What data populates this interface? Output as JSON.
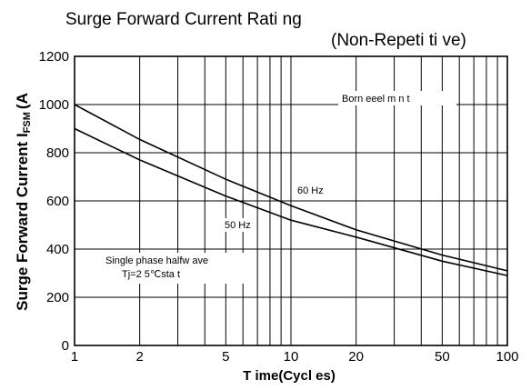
{
  "chart_data": {
    "type": "line",
    "title": "Surge Forward Current Rati ng",
    "subtitle": "(Non-Repeti ti ve)",
    "ylabel": "Surge Forward Current IFSM (A)",
    "ylabel_main": "Surge Forward Current I",
    "ylabel_sub": "FSM",
    "ylabel_unit": "(A",
    "xlabel": "T ime(Cycl es)",
    "x_scale": "log",
    "xlim": [
      1,
      100
    ],
    "ylim": [
      0,
      1200
    ],
    "grid": true,
    "x_ticks": [
      {
        "value": 1,
        "label": "1"
      },
      {
        "value": 2,
        "label": "2"
      },
      {
        "value": 5,
        "label": "5"
      },
      {
        "value": 10,
        "label": "10"
      },
      {
        "value": 20,
        "label": "20"
      },
      {
        "value": 50,
        "label": "50"
      },
      {
        "value": 100,
        "label": "100"
      }
    ],
    "y_ticks": [
      {
        "value": 0,
        "label": "0"
      },
      {
        "value": 200,
        "label": "200"
      },
      {
        "value": 400,
        "label": "400"
      },
      {
        "value": 600,
        "label": "600"
      },
      {
        "value": 800,
        "label": "800"
      },
      {
        "value": 1000,
        "label": "1000"
      },
      {
        "value": 1200,
        "label": "1200"
      }
    ],
    "series": [
      {
        "name": "60 Hz",
        "x": [
          1,
          2,
          5,
          10,
          20,
          50,
          100
        ],
        "y": [
          1000,
          855,
          690,
          580,
          480,
          375,
          310
        ]
      },
      {
        "name": "50 Hz",
        "x": [
          1,
          2,
          5,
          10,
          20,
          50,
          100
        ],
        "y": [
          900,
          770,
          620,
          520,
          450,
          350,
          290
        ]
      }
    ],
    "annotations": {
      "born": "Born eeel m n t",
      "hz60": "60 Hz",
      "hz50": "50 Hz",
      "single_phase": "Single phase halfw ave",
      "tj": "Tj=2 5℃sta  t"
    },
    "colors": {
      "line": "#000000",
      "grid": "#000000",
      "background": "#ffffff"
    }
  }
}
